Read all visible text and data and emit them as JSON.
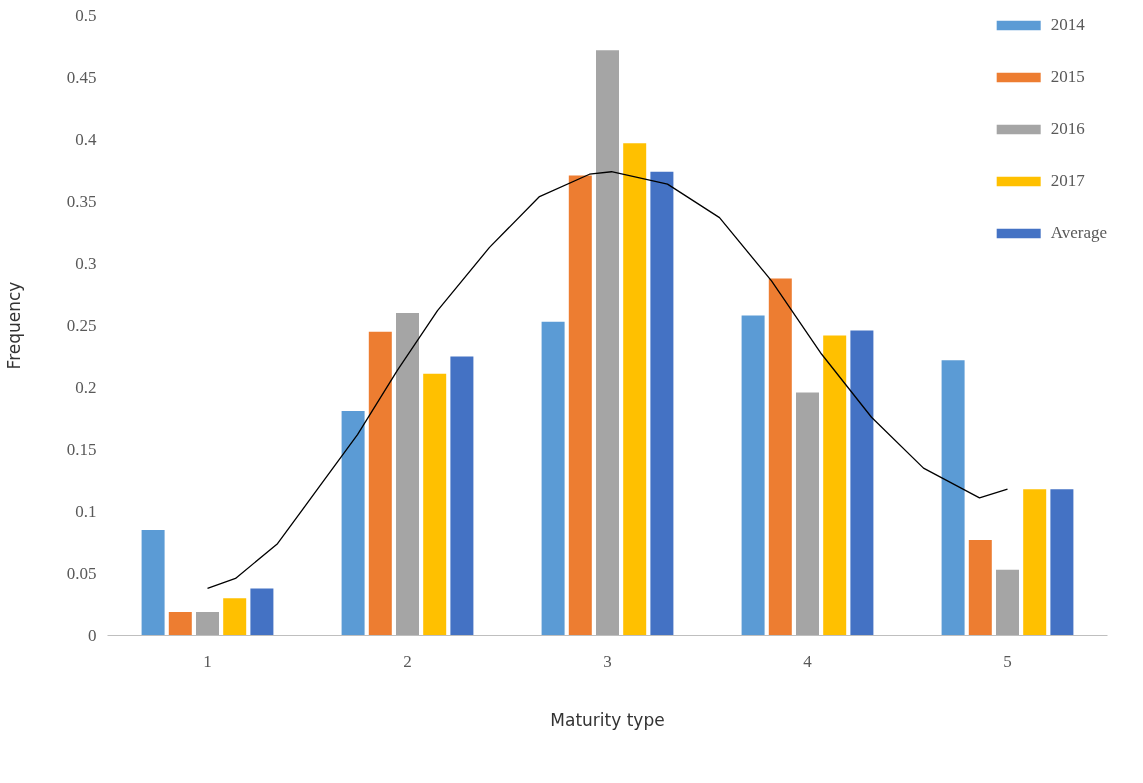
{
  "chart_data": {
    "type": "bar",
    "xlabel": "Maturity type",
    "ylabel": "Frequency",
    "x": [
      1,
      2,
      3,
      4,
      5
    ],
    "xlim": [
      0.5,
      5.5
    ],
    "xticks": [
      1,
      2,
      3,
      4,
      5
    ],
    "ylim": [
      0,
      0.5
    ],
    "yticks": [
      0,
      {
        "value": 0.05,
        "label": "0.05"
      },
      {
        "value": 0.1,
        "label": "0.1"
      },
      {
        "value": 0.15,
        "label": "0.15"
      },
      {
        "value": 0.2,
        "label": "0.2"
      },
      {
        "value": 0.25,
        "label": "0.25"
      },
      {
        "value": 0.3,
        "label": "0.3"
      },
      {
        "value": 0.35,
        "label": "0.35"
      },
      {
        "value": 0.4,
        "label": "0.4"
      },
      {
        "value": 0.45,
        "label": "0.45"
      },
      {
        "value": 0.5,
        "label": "0.5"
      }
    ],
    "grid": false,
    "legend": "top right",
    "series": [
      {
        "name": "2014",
        "color": "#5b9bd5",
        "values": [
          0.085,
          0.181,
          0.253,
          0.258,
          0.222
        ]
      },
      {
        "name": "2015",
        "color": "#ed7d31",
        "values": [
          0.019,
          0.245,
          0.371,
          0.288,
          0.077
        ]
      },
      {
        "name": "2016",
        "color": "#a5a5a5",
        "values": [
          0.019,
          0.26,
          0.472,
          0.196,
          0.053
        ]
      },
      {
        "name": "2017",
        "color": "#ffc000",
        "values": [
          0.03,
          0.211,
          0.397,
          0.242,
          0.118
        ]
      },
      {
        "name": "Average",
        "color": "#4472c4",
        "values": [
          0.038,
          0.225,
          0.374,
          0.246,
          0.118
        ]
      },
      {
        "type": "line",
        "color": "#000000",
        "line_style": "solid",
        "x": [
          1.0,
          1.14,
          1.35,
          1.55,
          1.75,
          1.95,
          2.15,
          2.41,
          2.66,
          2.91,
          3.02,
          3.3,
          3.56,
          3.82,
          4.07,
          4.32,
          4.58,
          4.86,
          5.0
        ],
        "values": [
          0.038,
          0.046,
          0.074,
          0.118,
          0.162,
          0.214,
          0.262,
          0.313,
          0.354,
          0.372,
          0.374,
          0.364,
          0.337,
          0.286,
          0.227,
          0.176,
          0.135,
          0.111,
          0.118
        ]
      }
    ]
  }
}
